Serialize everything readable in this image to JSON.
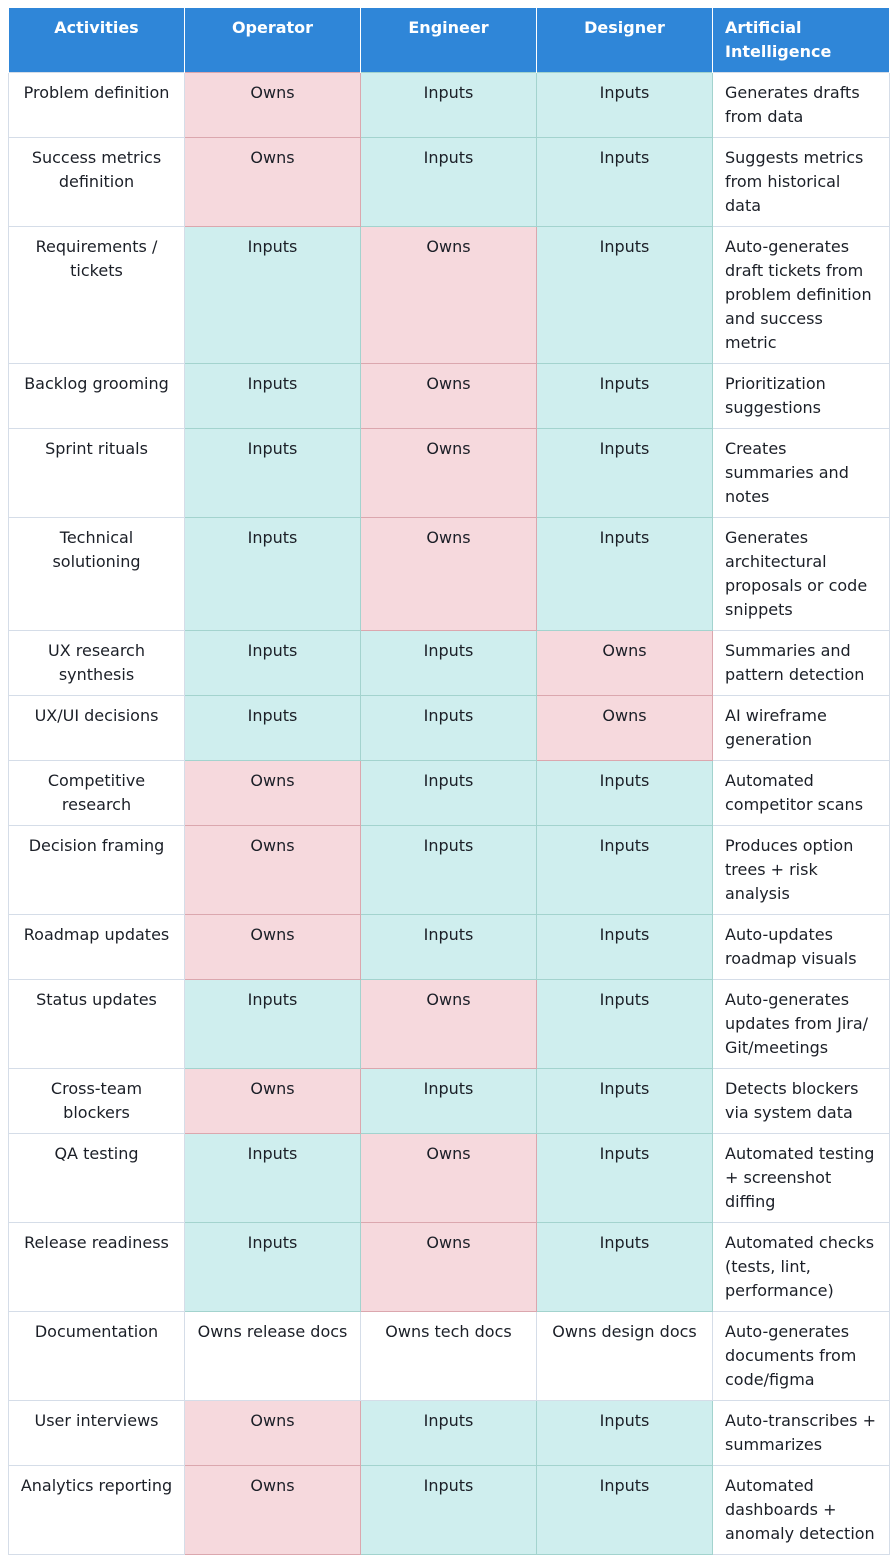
{
  "headers": [
    "Activities",
    "Operator",
    "Engineer",
    "Designer",
    "Artificial Intelligence"
  ],
  "rows": [
    {
      "activity": "Problem definition",
      "operator": "Owns",
      "engineer": "Inputs",
      "designer": "Inputs",
      "ai": "Generates drafts from data"
    },
    {
      "activity": "Success metrics definition",
      "operator": "Owns",
      "engineer": "Inputs",
      "designer": "Inputs",
      "ai": "Suggests metrics from historical data"
    },
    {
      "activity": "Requirements / tickets",
      "operator": "Inputs",
      "engineer": "Owns",
      "designer": "Inputs",
      "ai": "Auto-generates draft tickets from problem definition and success metric"
    },
    {
      "activity": "Backlog grooming",
      "operator": "Inputs",
      "engineer": "Owns",
      "designer": "Inputs",
      "ai": "Prioritization suggestions"
    },
    {
      "activity": "Sprint rituals",
      "operator": "Inputs",
      "engineer": "Owns",
      "designer": "Inputs",
      "ai": "Creates summaries and notes"
    },
    {
      "activity": "Technical solutioning",
      "operator": "Inputs",
      "engineer": "Owns",
      "designer": "Inputs",
      "ai": "Generates architectural proposals or code snippets"
    },
    {
      "activity": "UX research synthesis",
      "operator": "Inputs",
      "engineer": "Inputs",
      "designer": "Owns",
      "ai": "Summaries and pattern detection"
    },
    {
      "activity": "UX/UI decisions",
      "operator": "Inputs",
      "engineer": "Inputs",
      "designer": "Owns",
      "ai": "AI wireframe generation"
    },
    {
      "activity": "Competitive research",
      "operator": "Owns",
      "engineer": "Inputs",
      "designer": "Inputs",
      "ai": "Automated competitor scans"
    },
    {
      "activity": "Decision framing",
      "operator": "Owns",
      "engineer": "Inputs",
      "designer": "Inputs",
      "ai": "Produces option trees + risk analysis"
    },
    {
      "activity": "Roadmap updates",
      "operator": "Owns",
      "engineer": "Inputs",
      "designer": "Inputs",
      "ai": "Auto-updates roadmap visuals"
    },
    {
      "activity": "Status updates",
      "operator": "Inputs",
      "engineer": "Owns",
      "designer": "Inputs",
      "ai": "Auto-generates updates from Jira/ Git/meetings"
    },
    {
      "activity": "Cross-team blockers",
      "operator": "Owns",
      "engineer": "Inputs",
      "designer": "Inputs",
      "ai": "Detects blockers via system data"
    },
    {
      "activity": "QA testing",
      "operator": "Inputs",
      "engineer": "Owns",
      "designer": "Inputs",
      "ai": "Automated testing + screenshot diffing"
    },
    {
      "activity": "Release readiness",
      "operator": "Inputs",
      "engineer": "Owns",
      "designer": "Inputs",
      "ai": "Automated checks (tests, lint, performance)"
    },
    {
      "activity": "Documentation",
      "operator": "Owns release docs",
      "engineer": "Owns tech docs",
      "designer": "Owns design docs",
      "ai": "Auto-generates documents from code/figma"
    },
    {
      "activity": "User interviews",
      "operator": "Owns",
      "engineer": "Inputs",
      "designer": "Inputs",
      "ai": "Auto-transcribes + summarizes"
    },
    {
      "activity": "Analytics reporting",
      "operator": "Owns",
      "engineer": "Inputs",
      "designer": "Inputs",
      "ai": "Automated dashboards + anomaly detection"
    }
  ],
  "colors": {
    "header_bg": "#2f86d8",
    "owns_bg": "#f6d9dd",
    "inputs_bg": "#cfeeee"
  }
}
